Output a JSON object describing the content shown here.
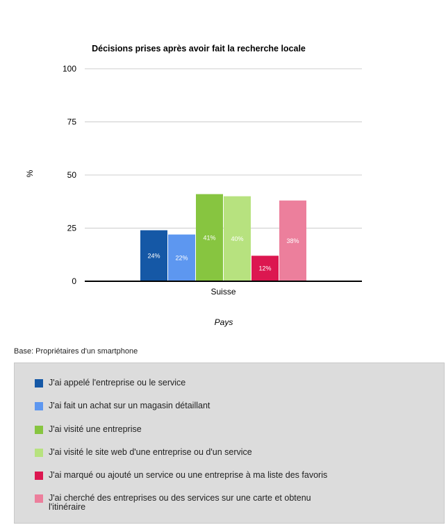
{
  "chart_data": {
    "type": "bar",
    "title": "Décisions prises après avoir fait la recherche locale",
    "ylabel": "%",
    "xlabel": "Pays",
    "categories": [
      "Suisse"
    ],
    "ylim": [
      0,
      100
    ],
    "yticks": [
      0,
      25,
      50,
      75,
      100
    ],
    "grid": true,
    "legend_position": "bottom",
    "series": [
      {
        "name": "J'ai appelé l'entreprise ou le service",
        "values": [
          24
        ],
        "label": "24%",
        "color": "#1558a6"
      },
      {
        "name": "J'ai fait un achat sur un magasin détaillant",
        "values": [
          22
        ],
        "label": "22%",
        "color": "#5d97f0"
      },
      {
        "name": "J'ai visité une entreprise",
        "values": [
          41
        ],
        "label": "41%",
        "color": "#87c540"
      },
      {
        "name": "J'ai visité le site web d'une entreprise ou d'un service",
        "values": [
          40
        ],
        "label": "40%",
        "color": "#b7e27f"
      },
      {
        "name": "J'ai marqué ou ajouté un service ou une entreprise à ma liste des favoris",
        "values": [
          12
        ],
        "label": "12%",
        "color": "#dc1750"
      },
      {
        "name": "J'ai cherché des entreprises ou des services sur une carte et obtenu l'itinéraire",
        "values": [
          38
        ],
        "label": "38%",
        "color": "#ec7f9c"
      }
    ]
  },
  "base_note": "Base: Propriétaires d'un smartphone"
}
